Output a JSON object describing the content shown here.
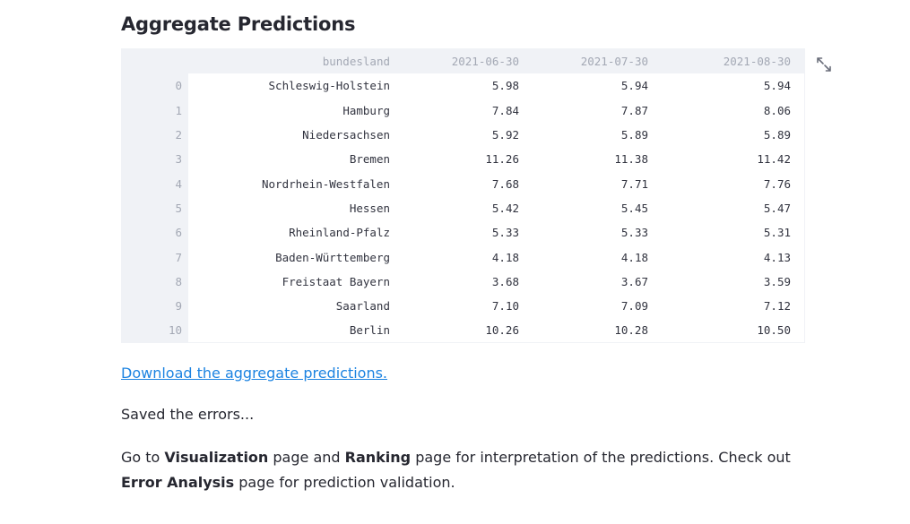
{
  "section": {
    "title": "Aggregate Predictions"
  },
  "table": {
    "columns": [
      "",
      "bundesland",
      "2021-06-30",
      "2021-07-30",
      "2021-08-30"
    ],
    "rows": [
      {
        "index": "0",
        "bundesland": "Schleswig-Holstein",
        "v1": "5.98",
        "v2": "5.94",
        "v3": "5.94"
      },
      {
        "index": "1",
        "bundesland": "Hamburg",
        "v1": "7.84",
        "v2": "7.87",
        "v3": "8.06"
      },
      {
        "index": "2",
        "bundesland": "Niedersachsen",
        "v1": "5.92",
        "v2": "5.89",
        "v3": "5.89"
      },
      {
        "index": "3",
        "bundesland": "Bremen",
        "v1": "11.26",
        "v2": "11.38",
        "v3": "11.42"
      },
      {
        "index": "4",
        "bundesland": "Nordrhein-Westfalen",
        "v1": "7.68",
        "v2": "7.71",
        "v3": "7.76"
      },
      {
        "index": "5",
        "bundesland": "Hessen",
        "v1": "5.42",
        "v2": "5.45",
        "v3": "5.47"
      },
      {
        "index": "6",
        "bundesland": "Rheinland-Pfalz",
        "v1": "5.33",
        "v2": "5.33",
        "v3": "5.31"
      },
      {
        "index": "7",
        "bundesland": "Baden-Württemberg",
        "v1": "4.18",
        "v2": "4.18",
        "v3": "4.13"
      },
      {
        "index": "8",
        "bundesland": "Freistaat Bayern",
        "v1": "3.68",
        "v2": "3.67",
        "v3": "3.59"
      },
      {
        "index": "9",
        "bundesland": "Saarland",
        "v1": "7.10",
        "v2": "7.09",
        "v3": "7.12"
      },
      {
        "index": "10",
        "bundesland": "Berlin",
        "v1": "10.26",
        "v2": "10.28",
        "v3": "10.50"
      }
    ]
  },
  "icons": {
    "expand": "expand-icon"
  },
  "download": {
    "label": "Download the aggregate predictions."
  },
  "status": {
    "saved": "Saved the errors..."
  },
  "guidance": {
    "part1": "Go to ",
    "visualization": "Visualization",
    "part2": " page and ",
    "ranking": "Ranking",
    "part3": " page for interpretation of the predictions. Check out ",
    "error_analysis": "Error Analysis",
    "part4": " page for prediction validation."
  },
  "colors": {
    "link": "#1c83e1",
    "header_bg": "#f0f2f6",
    "muted_text": "#a3a8b4",
    "text": "#262730"
  }
}
